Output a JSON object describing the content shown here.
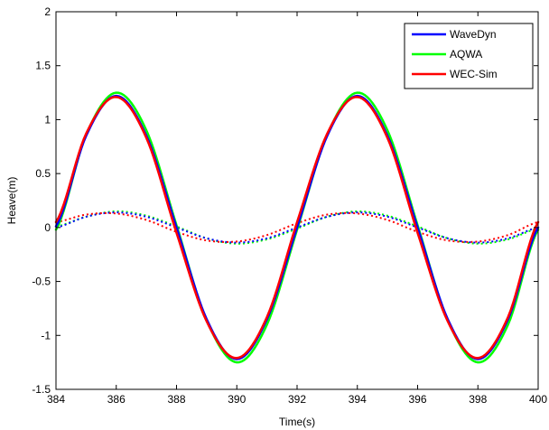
{
  "chart_data": {
    "type": "line",
    "xlabel": "Time(s)",
    "ylabel": "Heave(m)",
    "xlim": [
      384,
      400
    ],
    "ylim": [
      -1.5,
      2
    ],
    "x_ticks": [
      384,
      386,
      388,
      390,
      392,
      394,
      396,
      398,
      400
    ],
    "y_ticks": [
      -1.5,
      -1,
      -0.5,
      0,
      0.5,
      1,
      1.5,
      2
    ],
    "x_tick_labels": [
      "384",
      "386",
      "388",
      "390",
      "392",
      "394",
      "396",
      "398",
      "400"
    ],
    "y_tick_labels": [
      "-1.5",
      "-1",
      "-0.5",
      "0",
      "0.5",
      "1",
      "1.5",
      "2"
    ],
    "grid": false,
    "legend": {
      "position": "top-right",
      "entries": [
        "WaveDyn",
        "AQWA",
        "WEC-Sim"
      ]
    },
    "series": [
      {
        "name": "WaveDyn",
        "color": "#0000ff",
        "style": "solid",
        "x": [
          384,
          385,
          386,
          387,
          388,
          389,
          390,
          391,
          392,
          393,
          394,
          395,
          396,
          397,
          398,
          399,
          400
        ],
        "y": [
          0.01,
          0.85,
          1.22,
          0.85,
          0.0,
          -0.85,
          -1.22,
          -0.85,
          0.0,
          0.85,
          1.22,
          0.85,
          0.0,
          -0.85,
          -1.22,
          -0.85,
          0.0
        ]
      },
      {
        "name": "AQWA",
        "color": "#00ff00",
        "style": "solid",
        "x": [
          384,
          385,
          386,
          387,
          388,
          389,
          390,
          391,
          392,
          393,
          394,
          395,
          396,
          397,
          398,
          399,
          400
        ],
        "y": [
          -0.02,
          0.86,
          1.25,
          0.9,
          0.02,
          -0.86,
          -1.25,
          -0.9,
          -0.02,
          0.86,
          1.25,
          0.9,
          0.02,
          -0.86,
          -1.25,
          -0.9,
          -0.02
        ]
      },
      {
        "name": "WEC-Sim",
        "color": "#ff0000",
        "style": "solid",
        "x": [
          384,
          385,
          386,
          387,
          388,
          389,
          390,
          391,
          392,
          393,
          394,
          395,
          396,
          397,
          398,
          399,
          400
        ],
        "y": [
          0.05,
          0.87,
          1.21,
          0.83,
          -0.05,
          -0.87,
          -1.21,
          -0.83,
          0.05,
          0.87,
          1.21,
          0.83,
          -0.05,
          -0.87,
          -1.21,
          -0.83,
          0.05
        ]
      },
      {
        "color": "#0000ff",
        "style": "dotted",
        "x": [
          384,
          385,
          386,
          387,
          388,
          389,
          390,
          391,
          392,
          393,
          394,
          395,
          396,
          397,
          398,
          399,
          400
        ],
        "y": [
          0.0,
          0.1,
          0.14,
          0.1,
          0.0,
          -0.1,
          -0.14,
          -0.1,
          0.0,
          0.1,
          0.14,
          0.1,
          0.0,
          -0.1,
          -0.14,
          -0.1,
          0.0
        ]
      },
      {
        "color": "#00ff00",
        "style": "dotted",
        "x": [
          384,
          385,
          386,
          387,
          388,
          389,
          390,
          391,
          392,
          393,
          394,
          395,
          396,
          397,
          398,
          399,
          400
        ],
        "y": [
          0.01,
          0.1,
          0.15,
          0.11,
          0.01,
          -0.1,
          -0.15,
          -0.11,
          -0.01,
          0.1,
          0.15,
          0.11,
          0.01,
          -0.1,
          -0.15,
          -0.11,
          -0.01
        ]
      },
      {
        "color": "#ff0000",
        "style": "dotted",
        "x": [
          384,
          385,
          386,
          387,
          388,
          389,
          390,
          391,
          392,
          393,
          394,
          395,
          396,
          397,
          398,
          399,
          400
        ],
        "y": [
          0.05,
          0.12,
          0.13,
          0.07,
          -0.04,
          -0.12,
          -0.13,
          -0.07,
          0.04,
          0.12,
          0.13,
          0.07,
          -0.04,
          -0.12,
          -0.13,
          -0.07,
          0.05
        ]
      }
    ]
  }
}
